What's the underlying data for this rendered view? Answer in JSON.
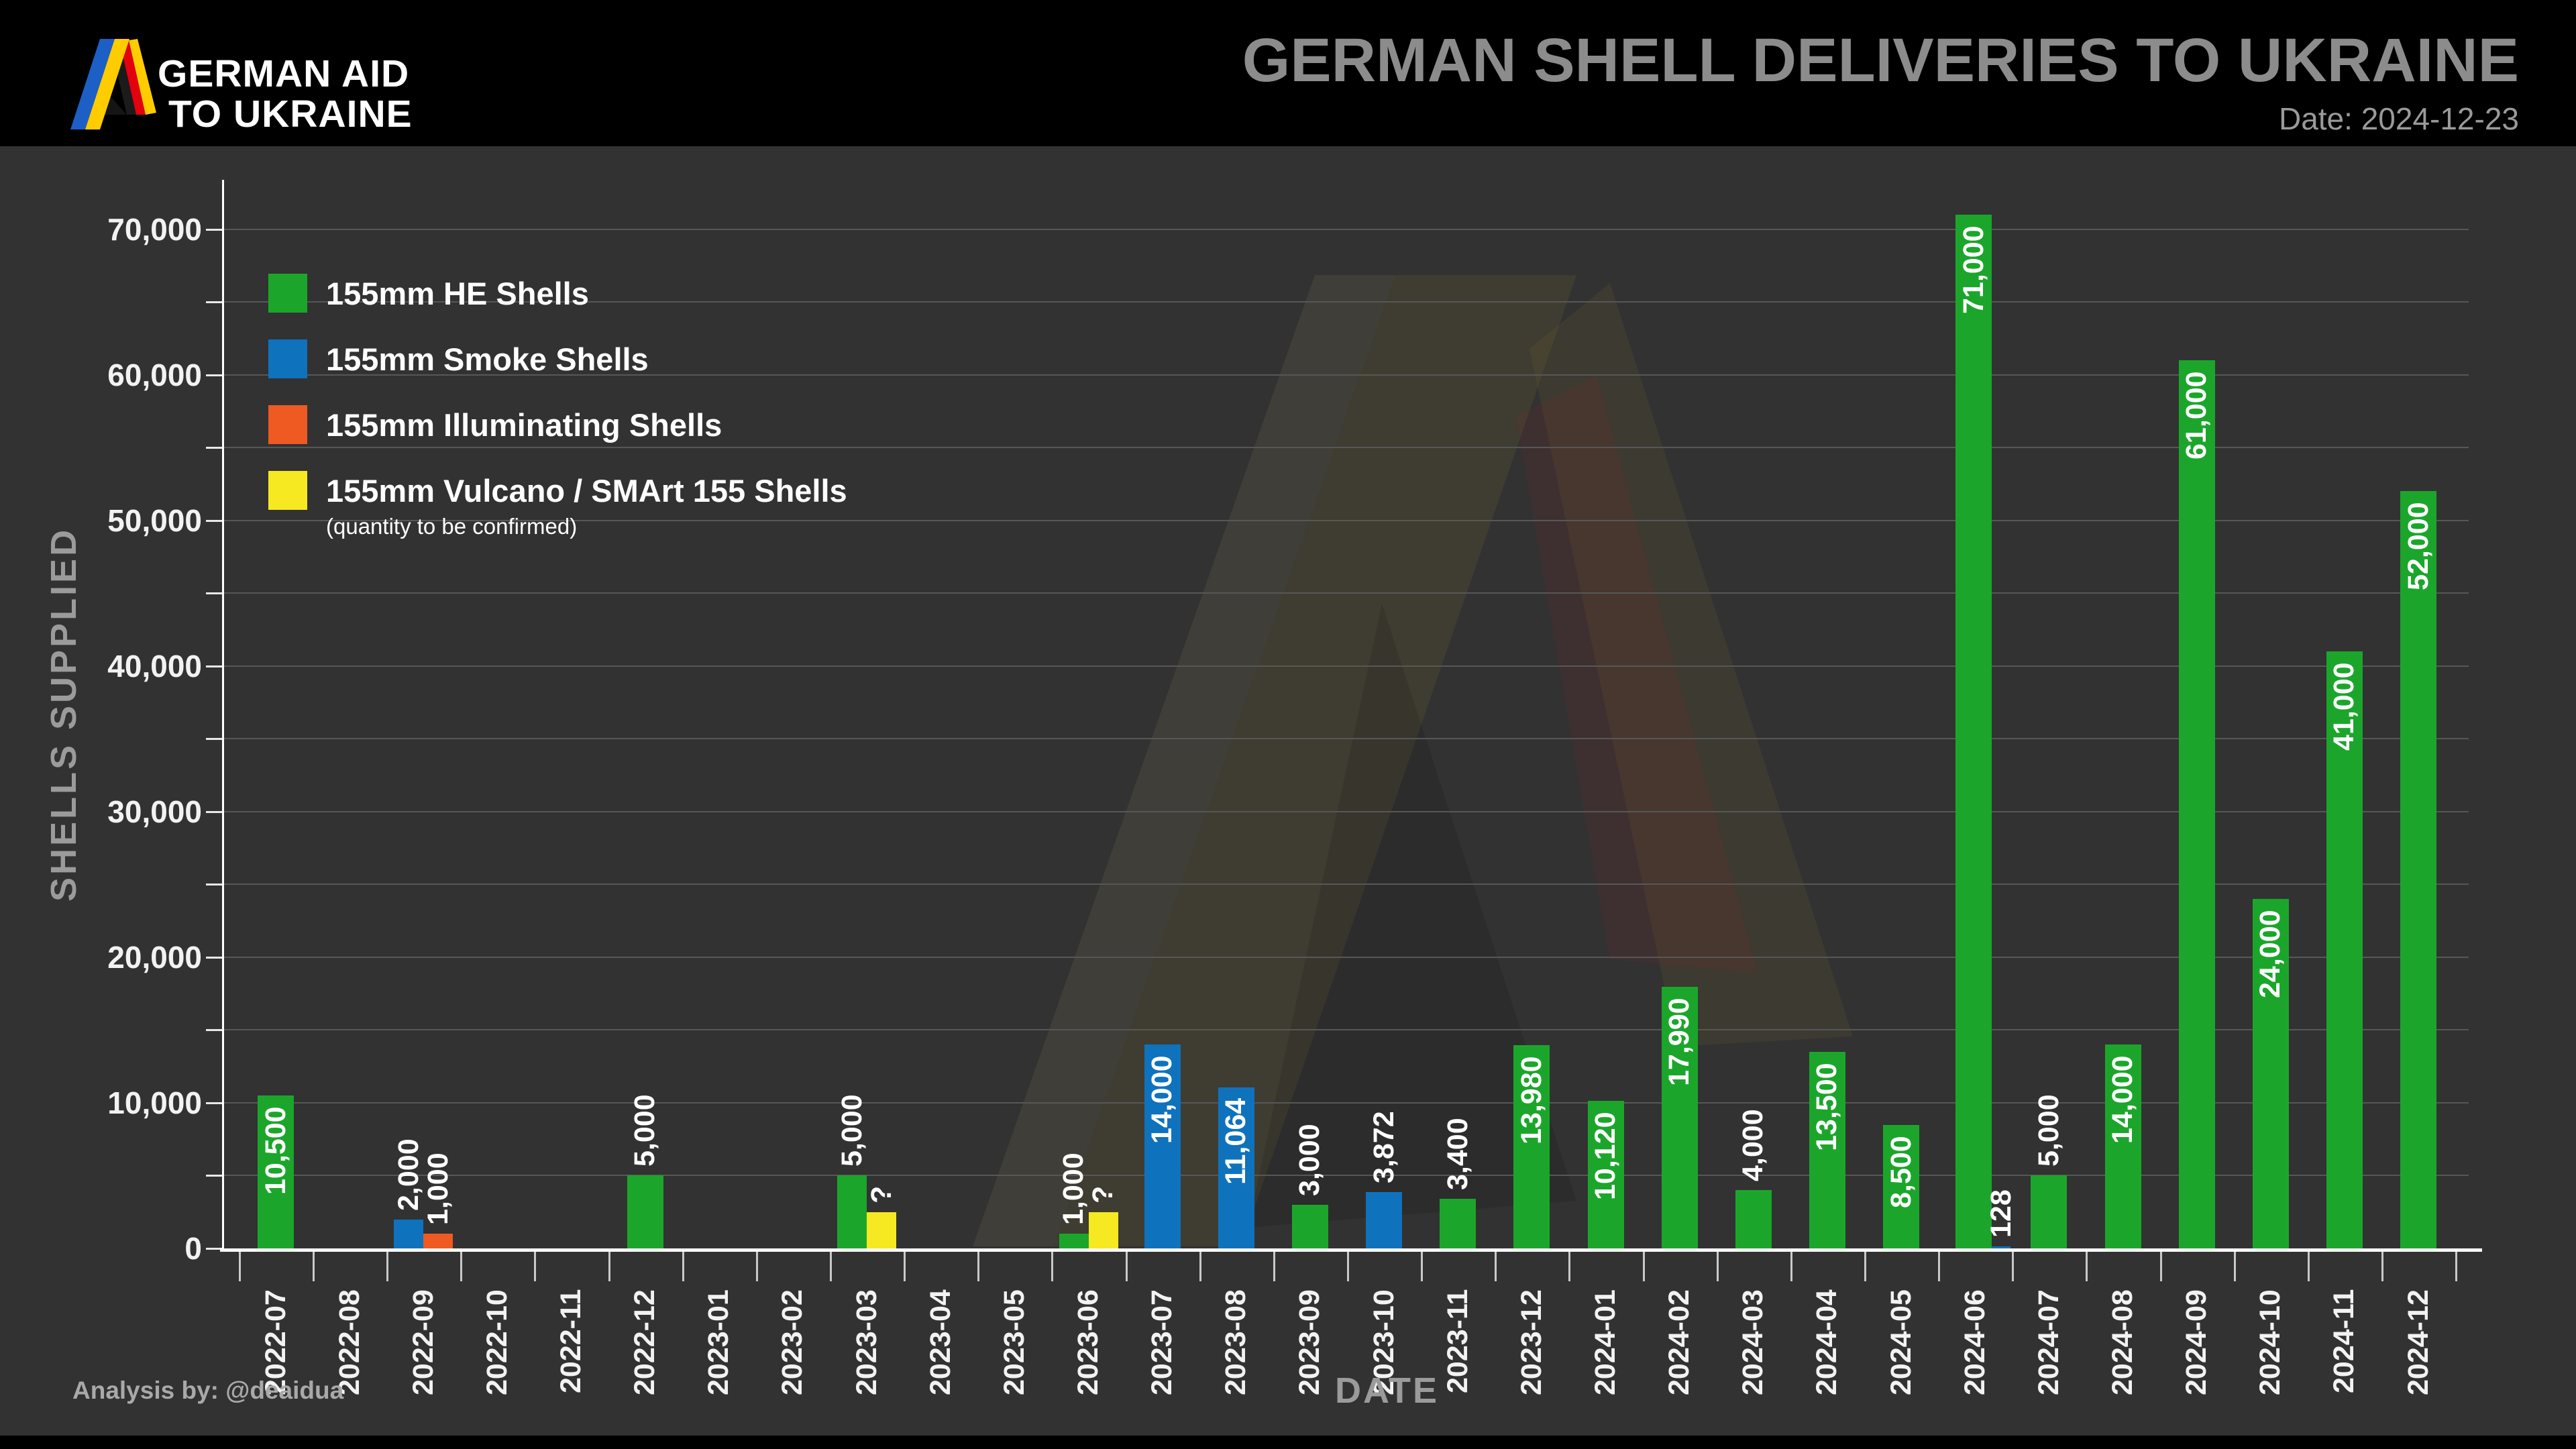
{
  "header": {
    "logo_line1": "GERMAN AID",
    "logo_line2": "TO UKRAINE",
    "title": "GERMAN SHELL DELIVERIES TO UKRAINE",
    "date": "Date: 2024-12-23"
  },
  "footer": {
    "credit": "Analysis by: @deaidua"
  },
  "chart_data": {
    "type": "bar",
    "title": "GERMAN SHELL DELIVERIES TO UKRAINE",
    "xlabel": "DATE",
    "ylabel": "SHELLS  SUPPLIED",
    "ylim": [
      0,
      72500
    ],
    "ytick_label_interval": 10000,
    "gridline_interval": 5000,
    "grid": "on",
    "legend_position": "upper left",
    "y_tick_labels": [
      "0",
      "10,000",
      "20,000",
      "30,000",
      "40,000",
      "50,000",
      "60,000",
      "70,000"
    ],
    "categories": [
      "2022-07",
      "2022-08",
      "2022-09",
      "2022-10",
      "2022-11",
      "2022-12",
      "2023-01",
      "2023-02",
      "2023-03",
      "2023-04",
      "2023-05",
      "2023-06",
      "2023-07",
      "2023-08",
      "2023-09",
      "2023-10",
      "2023-11",
      "2023-12",
      "2024-01",
      "2024-02",
      "2024-03",
      "2024-04",
      "2024-05",
      "2024-06",
      "2024-07",
      "2024-08",
      "2024-09",
      "2024-10",
      "2024-11",
      "2024-12"
    ],
    "series": [
      {
        "key": "he",
        "name": "155mm HE Shells",
        "color": "#1BA62B"
      },
      {
        "key": "smoke",
        "name": "155mm Smoke Shells",
        "color": "#0F72BD"
      },
      {
        "key": "illum",
        "name": "155mm Illuminating Shells",
        "color": "#EE5A22"
      },
      {
        "key": "vulcano",
        "name": "155mm Vulcano / SMArt 155 Shells",
        "color": "#F6E821",
        "sublabel": "(quantity to be confirmed)"
      }
    ],
    "bars": [
      {
        "category": "2022-07",
        "series": "he",
        "value": 10500,
        "label": "10,500",
        "label_pos": "in"
      },
      {
        "category": "2022-09",
        "series": "smoke",
        "value": 2000,
        "label": "2,000",
        "label_pos": "above"
      },
      {
        "category": "2022-09",
        "series": "illum",
        "value": 1000,
        "label": "1,000",
        "label_pos": "above"
      },
      {
        "category": "2022-12",
        "series": "he",
        "value": 5000,
        "label": "5,000",
        "label_pos": "above"
      },
      {
        "category": "2023-03",
        "series": "he",
        "value": 5000,
        "label": "5,000",
        "label_pos": "above"
      },
      {
        "category": "2023-03",
        "series": "vulcano",
        "value": 2500,
        "label": "?",
        "label_pos": "above"
      },
      {
        "category": "2023-06",
        "series": "he",
        "value": 1000,
        "label": "1,000",
        "label_pos": "above"
      },
      {
        "category": "2023-06",
        "series": "vulcano",
        "value": 2500,
        "label": "?",
        "label_pos": "above"
      },
      {
        "category": "2023-07",
        "series": "smoke",
        "value": 14000,
        "label": "14,000",
        "label_pos": "in"
      },
      {
        "category": "2023-08",
        "series": "smoke",
        "value": 11064,
        "label": "11,064",
        "label_pos": "in"
      },
      {
        "category": "2023-09",
        "series": "he",
        "value": 3000,
        "label": "3,000",
        "label_pos": "above"
      },
      {
        "category": "2023-10",
        "series": "smoke",
        "value": 3872,
        "label": "3,872",
        "label_pos": "above"
      },
      {
        "category": "2023-11",
        "series": "he",
        "value": 3400,
        "label": "3,400",
        "label_pos": "above"
      },
      {
        "category": "2023-12",
        "series": "he",
        "value": 13980,
        "label": "13,980",
        "label_pos": "in"
      },
      {
        "category": "2024-01",
        "series": "he",
        "value": 10120,
        "label": "10,120",
        "label_pos": "in"
      },
      {
        "category": "2024-02",
        "series": "he",
        "value": 17990,
        "label": "17,990",
        "label_pos": "in"
      },
      {
        "category": "2024-03",
        "series": "he",
        "value": 4000,
        "label": "4,000",
        "label_pos": "above"
      },
      {
        "category": "2024-04",
        "series": "he",
        "value": 13500,
        "label": "13,500",
        "label_pos": "in"
      },
      {
        "category": "2024-05",
        "series": "he",
        "value": 8500,
        "label": "8,500",
        "label_pos": "in"
      },
      {
        "category": "2024-06",
        "series": "he",
        "value": 71000,
        "label": "71,000",
        "label_pos": "in"
      },
      {
        "category": "2024-06",
        "series": "smoke",
        "value": 128,
        "label": "128",
        "label_pos": "above"
      },
      {
        "category": "2024-07",
        "series": "he",
        "value": 5000,
        "label": "5,000",
        "label_pos": "above"
      },
      {
        "category": "2024-08",
        "series": "he",
        "value": 14000,
        "label": "14,000",
        "label_pos": "in"
      },
      {
        "category": "2024-09",
        "series": "he",
        "value": 61000,
        "label": "61,000",
        "label_pos": "in"
      },
      {
        "category": "2024-10",
        "series": "he",
        "value": 24000,
        "label": "24,000",
        "label_pos": "in"
      },
      {
        "category": "2024-11",
        "series": "he",
        "value": 41000,
        "label": "41,000",
        "label_pos": "in"
      },
      {
        "category": "2024-12",
        "series": "he",
        "value": 52000,
        "label": "52,000",
        "label_pos": "in"
      }
    ]
  },
  "colors": {
    "background": "#323232",
    "header_background": "#000000",
    "title_gray": "#8c8c8c",
    "gridline": "#575757",
    "logo_blue": "#1C5FC6",
    "logo_yellow": "#FFCC00",
    "logo_red": "#E30613"
  }
}
